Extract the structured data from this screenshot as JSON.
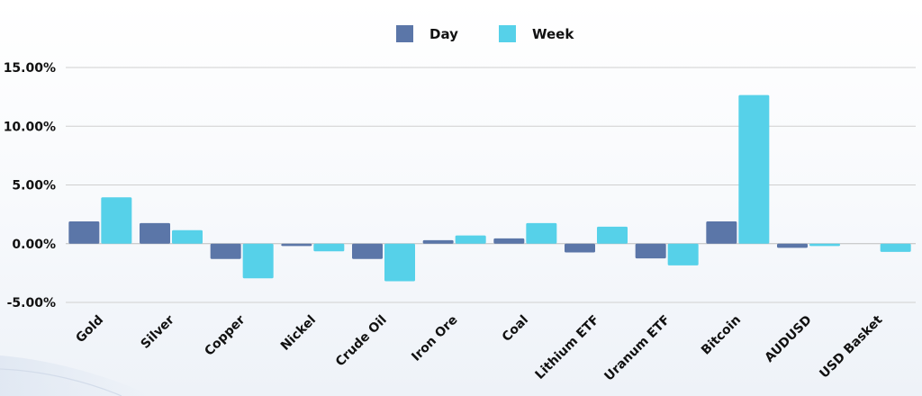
{
  "chart_data": {
    "type": "bar",
    "categories": [
      "Gold",
      "Silver",
      "Copper",
      "Nickel",
      "Crude Oil",
      "Iron Ore",
      "Coal",
      "Lithium ETF",
      "Uranum ETF",
      "Bitcoin",
      "AUDUSD",
      "USD Basket"
    ],
    "series": [
      {
        "name": "Day",
        "color": "#5b76a8",
        "values": [
          1.9,
          1.75,
          -1.3,
          -0.2,
          -1.3,
          0.3,
          0.45,
          -0.75,
          -1.25,
          1.9,
          -0.35,
          0.0
        ]
      },
      {
        "name": "Week",
        "color": "#56d1e9",
        "values": [
          3.95,
          1.15,
          -2.95,
          -0.65,
          -3.2,
          0.7,
          1.75,
          1.45,
          -1.85,
          12.65,
          -0.2,
          -0.7
        ]
      }
    ],
    "y_ticks": [
      "15.00%",
      "10.00%",
      "5.00%",
      "0.00%",
      "-5.00%"
    ],
    "ylim": [
      -5,
      15
    ],
    "grid": true,
    "legend_position": "top-center"
  }
}
